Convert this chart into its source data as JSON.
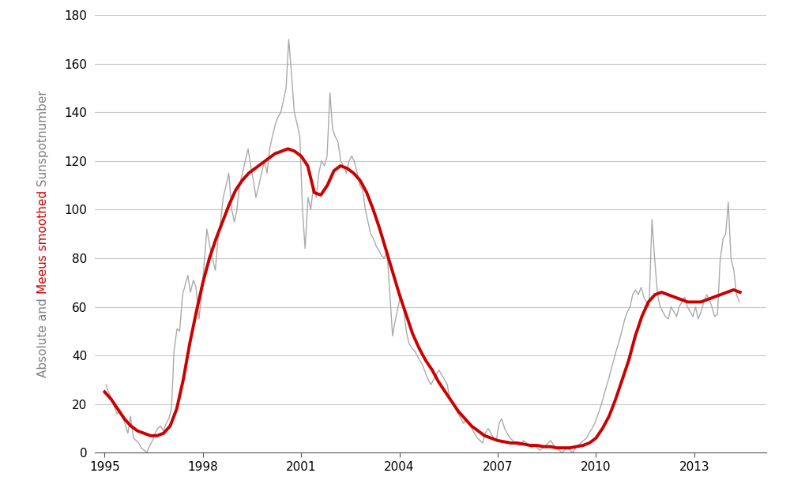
{
  "xlim": [
    1994.7,
    2015.2
  ],
  "ylim": [
    0,
    180
  ],
  "yticks": [
    0,
    20,
    40,
    60,
    80,
    100,
    120,
    140,
    160,
    180
  ],
  "xticks": [
    1995,
    1998,
    2001,
    2004,
    2007,
    2010,
    2013
  ],
  "background_color": "#ffffff",
  "grid_color": "#c8c8c8",
  "raw_color": "#aaaaaa",
  "smooth_color": "#cc0000",
  "raw_linewidth": 1.0,
  "smooth_linewidth": 2.8,
  "monthly_data": [
    [
      1995.04,
      28
    ],
    [
      1995.12,
      25
    ],
    [
      1995.21,
      22
    ],
    [
      1995.29,
      19
    ],
    [
      1995.38,
      16
    ],
    [
      1995.46,
      17
    ],
    [
      1995.54,
      15
    ],
    [
      1995.62,
      12
    ],
    [
      1995.71,
      8
    ],
    [
      1995.79,
      15
    ],
    [
      1995.88,
      6
    ],
    [
      1995.96,
      5
    ],
    [
      1996.04,
      4
    ],
    [
      1996.12,
      2
    ],
    [
      1996.21,
      1
    ],
    [
      1996.29,
      0
    ],
    [
      1996.38,
      3
    ],
    [
      1996.46,
      5
    ],
    [
      1996.54,
      8
    ],
    [
      1996.62,
      10
    ],
    [
      1996.71,
      11
    ],
    [
      1996.79,
      9
    ],
    [
      1996.88,
      12
    ],
    [
      1996.96,
      14
    ],
    [
      1997.04,
      18
    ],
    [
      1997.12,
      42
    ],
    [
      1997.21,
      51
    ],
    [
      1997.29,
      50
    ],
    [
      1997.38,
      65
    ],
    [
      1997.46,
      69
    ],
    [
      1997.54,
      73
    ],
    [
      1997.62,
      66
    ],
    [
      1997.71,
      71
    ],
    [
      1997.79,
      68
    ],
    [
      1997.88,
      55
    ],
    [
      1997.96,
      65
    ],
    [
      1998.04,
      78
    ],
    [
      1998.12,
      92
    ],
    [
      1998.21,
      85
    ],
    [
      1998.29,
      80
    ],
    [
      1998.38,
      75
    ],
    [
      1998.46,
      88
    ],
    [
      1998.54,
      95
    ],
    [
      1998.62,
      105
    ],
    [
      1998.71,
      110
    ],
    [
      1998.79,
      115
    ],
    [
      1998.88,
      100
    ],
    [
      1998.96,
      95
    ],
    [
      1999.04,
      100
    ],
    [
      1999.12,
      110
    ],
    [
      1999.21,
      115
    ],
    [
      1999.29,
      120
    ],
    [
      1999.38,
      125
    ],
    [
      1999.46,
      118
    ],
    [
      1999.54,
      112
    ],
    [
      1999.62,
      105
    ],
    [
      1999.71,
      110
    ],
    [
      1999.79,
      115
    ],
    [
      1999.88,
      120
    ],
    [
      1999.96,
      115
    ],
    [
      2000.04,
      125
    ],
    [
      2000.12,
      130
    ],
    [
      2000.21,
      135
    ],
    [
      2000.29,
      138
    ],
    [
      2000.38,
      140
    ],
    [
      2000.46,
      145
    ],
    [
      2000.54,
      150
    ],
    [
      2000.62,
      170
    ],
    [
      2000.71,
      155
    ],
    [
      2000.79,
      140
    ],
    [
      2000.88,
      135
    ],
    [
      2000.96,
      130
    ],
    [
      2001.04,
      100
    ],
    [
      2001.12,
      84
    ],
    [
      2001.21,
      105
    ],
    [
      2001.29,
      100
    ],
    [
      2001.38,
      110
    ],
    [
      2001.46,
      105
    ],
    [
      2001.54,
      115
    ],
    [
      2001.62,
      120
    ],
    [
      2001.71,
      118
    ],
    [
      2001.79,
      122
    ],
    [
      2001.88,
      148
    ],
    [
      2001.96,
      133
    ],
    [
      2002.04,
      130
    ],
    [
      2002.12,
      128
    ],
    [
      2002.21,
      120
    ],
    [
      2002.29,
      118
    ],
    [
      2002.38,
      115
    ],
    [
      2002.46,
      120
    ],
    [
      2002.54,
      122
    ],
    [
      2002.62,
      120
    ],
    [
      2002.71,
      115
    ],
    [
      2002.79,
      110
    ],
    [
      2002.88,
      108
    ],
    [
      2002.96,
      100
    ],
    [
      2003.04,
      95
    ],
    [
      2003.12,
      90
    ],
    [
      2003.21,
      88
    ],
    [
      2003.29,
      85
    ],
    [
      2003.38,
      83
    ],
    [
      2003.46,
      81
    ],
    [
      2003.54,
      80
    ],
    [
      2003.62,
      83
    ],
    [
      2003.71,
      65
    ],
    [
      2003.79,
      48
    ],
    [
      2003.88,
      55
    ],
    [
      2003.96,
      60
    ],
    [
      2004.04,
      65
    ],
    [
      2004.12,
      60
    ],
    [
      2004.21,
      50
    ],
    [
      2004.29,
      45
    ],
    [
      2004.38,
      43
    ],
    [
      2004.46,
      42
    ],
    [
      2004.54,
      40
    ],
    [
      2004.62,
      38
    ],
    [
      2004.71,
      36
    ],
    [
      2004.79,
      33
    ],
    [
      2004.88,
      30
    ],
    [
      2004.96,
      28
    ],
    [
      2005.04,
      30
    ],
    [
      2005.12,
      32
    ],
    [
      2005.21,
      34
    ],
    [
      2005.29,
      32
    ],
    [
      2005.38,
      30
    ],
    [
      2005.46,
      28
    ],
    [
      2005.54,
      22
    ],
    [
      2005.62,
      20
    ],
    [
      2005.71,
      18
    ],
    [
      2005.79,
      16
    ],
    [
      2005.88,
      14
    ],
    [
      2005.96,
      12
    ],
    [
      2006.04,
      14
    ],
    [
      2006.12,
      12
    ],
    [
      2006.21,
      10
    ],
    [
      2006.29,
      8
    ],
    [
      2006.38,
      6
    ],
    [
      2006.46,
      5
    ],
    [
      2006.54,
      4
    ],
    [
      2006.62,
      8
    ],
    [
      2006.71,
      10
    ],
    [
      2006.79,
      8
    ],
    [
      2006.88,
      6
    ],
    [
      2006.96,
      5
    ],
    [
      2007.04,
      12
    ],
    [
      2007.12,
      14
    ],
    [
      2007.21,
      10
    ],
    [
      2007.29,
      8
    ],
    [
      2007.38,
      6
    ],
    [
      2007.46,
      5
    ],
    [
      2007.54,
      4
    ],
    [
      2007.62,
      3
    ],
    [
      2007.71,
      3
    ],
    [
      2007.79,
      5
    ],
    [
      2007.88,
      4
    ],
    [
      2007.96,
      3
    ],
    [
      2008.04,
      2
    ],
    [
      2008.12,
      3
    ],
    [
      2008.21,
      2
    ],
    [
      2008.29,
      1
    ],
    [
      2008.38,
      2
    ],
    [
      2008.46,
      3
    ],
    [
      2008.54,
      4
    ],
    [
      2008.62,
      5
    ],
    [
      2008.71,
      3
    ],
    [
      2008.79,
      2
    ],
    [
      2008.88,
      1
    ],
    [
      2008.96,
      0
    ],
    [
      2009.04,
      1
    ],
    [
      2009.12,
      2
    ],
    [
      2009.21,
      1
    ],
    [
      2009.29,
      0
    ],
    [
      2009.38,
      2
    ],
    [
      2009.46,
      3
    ],
    [
      2009.54,
      4
    ],
    [
      2009.62,
      5
    ],
    [
      2009.71,
      6
    ],
    [
      2009.79,
      8
    ],
    [
      2009.88,
      10
    ],
    [
      2009.96,
      12
    ],
    [
      2010.04,
      15
    ],
    [
      2010.12,
      18
    ],
    [
      2010.21,
      22
    ],
    [
      2010.29,
      26
    ],
    [
      2010.38,
      30
    ],
    [
      2010.46,
      34
    ],
    [
      2010.54,
      38
    ],
    [
      2010.62,
      42
    ],
    [
      2010.71,
      46
    ],
    [
      2010.79,
      50
    ],
    [
      2010.88,
      55
    ],
    [
      2010.96,
      58
    ],
    [
      2011.04,
      60
    ],
    [
      2011.12,
      65
    ],
    [
      2011.21,
      67
    ],
    [
      2011.29,
      65
    ],
    [
      2011.38,
      68
    ],
    [
      2011.46,
      64
    ],
    [
      2011.54,
      62
    ],
    [
      2011.62,
      60
    ],
    [
      2011.71,
      96
    ],
    [
      2011.79,
      80
    ],
    [
      2011.88,
      65
    ],
    [
      2011.96,
      60
    ],
    [
      2012.04,
      58
    ],
    [
      2012.12,
      56
    ],
    [
      2012.21,
      55
    ],
    [
      2012.29,
      60
    ],
    [
      2012.38,
      58
    ],
    [
      2012.46,
      56
    ],
    [
      2012.54,
      60
    ],
    [
      2012.62,
      62
    ],
    [
      2012.71,
      64
    ],
    [
      2012.79,
      60
    ],
    [
      2012.88,
      58
    ],
    [
      2012.96,
      56
    ],
    [
      2013.04,
      60
    ],
    [
      2013.12,
      55
    ],
    [
      2013.21,
      58
    ],
    [
      2013.29,
      62
    ],
    [
      2013.38,
      65
    ],
    [
      2013.46,
      63
    ],
    [
      2013.54,
      60
    ],
    [
      2013.62,
      56
    ],
    [
      2013.71,
      57
    ],
    [
      2013.79,
      79
    ],
    [
      2013.88,
      88
    ],
    [
      2013.96,
      90
    ],
    [
      2014.04,
      103
    ],
    [
      2014.12,
      80
    ],
    [
      2014.21,
      75
    ],
    [
      2014.29,
      65
    ],
    [
      2014.38,
      62
    ]
  ],
  "smooth_data": [
    [
      1995.0,
      25
    ],
    [
      1995.2,
      22
    ],
    [
      1995.4,
      18
    ],
    [
      1995.6,
      14
    ],
    [
      1995.8,
      11
    ],
    [
      1996.0,
      9
    ],
    [
      1996.2,
      8
    ],
    [
      1996.4,
      7
    ],
    [
      1996.6,
      7
    ],
    [
      1996.8,
      8
    ],
    [
      1997.0,
      11
    ],
    [
      1997.2,
      18
    ],
    [
      1997.4,
      30
    ],
    [
      1997.6,
      45
    ],
    [
      1997.8,
      58
    ],
    [
      1998.0,
      70
    ],
    [
      1998.2,
      80
    ],
    [
      1998.4,
      88
    ],
    [
      1998.6,
      95
    ],
    [
      1998.8,
      102
    ],
    [
      1999.0,
      108
    ],
    [
      1999.2,
      112
    ],
    [
      1999.4,
      115
    ],
    [
      1999.6,
      117
    ],
    [
      1999.8,
      119
    ],
    [
      2000.0,
      121
    ],
    [
      2000.2,
      123
    ],
    [
      2000.4,
      124
    ],
    [
      2000.6,
      125
    ],
    [
      2000.8,
      124
    ],
    [
      2001.0,
      122
    ],
    [
      2001.2,
      118
    ],
    [
      2001.4,
      107
    ],
    [
      2001.6,
      106
    ],
    [
      2001.8,
      110
    ],
    [
      2002.0,
      116
    ],
    [
      2002.2,
      118
    ],
    [
      2002.4,
      117
    ],
    [
      2002.6,
      115
    ],
    [
      2002.8,
      112
    ],
    [
      2003.0,
      107
    ],
    [
      2003.2,
      100
    ],
    [
      2003.4,
      92
    ],
    [
      2003.6,
      83
    ],
    [
      2003.8,
      74
    ],
    [
      2004.0,
      65
    ],
    [
      2004.2,
      57
    ],
    [
      2004.4,
      49
    ],
    [
      2004.6,
      43
    ],
    [
      2004.8,
      38
    ],
    [
      2005.0,
      34
    ],
    [
      2005.2,
      29
    ],
    [
      2005.4,
      25
    ],
    [
      2005.6,
      21
    ],
    [
      2005.8,
      17
    ],
    [
      2006.0,
      14
    ],
    [
      2006.2,
      11
    ],
    [
      2006.4,
      9
    ],
    [
      2006.6,
      7
    ],
    [
      2006.8,
      6
    ],
    [
      2007.0,
      5
    ],
    [
      2007.2,
      4.5
    ],
    [
      2007.4,
      4
    ],
    [
      2007.6,
      4
    ],
    [
      2007.8,
      3.5
    ],
    [
      2008.0,
      3
    ],
    [
      2008.2,
      3
    ],
    [
      2008.4,
      2.5
    ],
    [
      2008.6,
      2.5
    ],
    [
      2008.8,
      2
    ],
    [
      2009.0,
      2
    ],
    [
      2009.2,
      2
    ],
    [
      2009.4,
      2.5
    ],
    [
      2009.6,
      3
    ],
    [
      2009.8,
      4
    ],
    [
      2010.0,
      6
    ],
    [
      2010.2,
      10
    ],
    [
      2010.4,
      15
    ],
    [
      2010.6,
      22
    ],
    [
      2010.8,
      30
    ],
    [
      2011.0,
      38
    ],
    [
      2011.2,
      48
    ],
    [
      2011.4,
      56
    ],
    [
      2011.6,
      62
    ],
    [
      2011.8,
      65
    ],
    [
      2012.0,
      66
    ],
    [
      2012.2,
      65
    ],
    [
      2012.4,
      64
    ],
    [
      2012.6,
      63
    ],
    [
      2012.8,
      62
    ],
    [
      2013.0,
      62
    ],
    [
      2013.2,
      62
    ],
    [
      2013.4,
      63
    ],
    [
      2013.6,
      64
    ],
    [
      2013.8,
      65
    ],
    [
      2014.0,
      66
    ],
    [
      2014.2,
      67
    ],
    [
      2014.4,
      66
    ]
  ],
  "ylabel_label": "Absolute and Meeus smoothed Sunspotnumber",
  "ylabel_gray": "#808080",
  "ylabel_red": "#cc0000",
  "ylabel_fontsize": 11
}
